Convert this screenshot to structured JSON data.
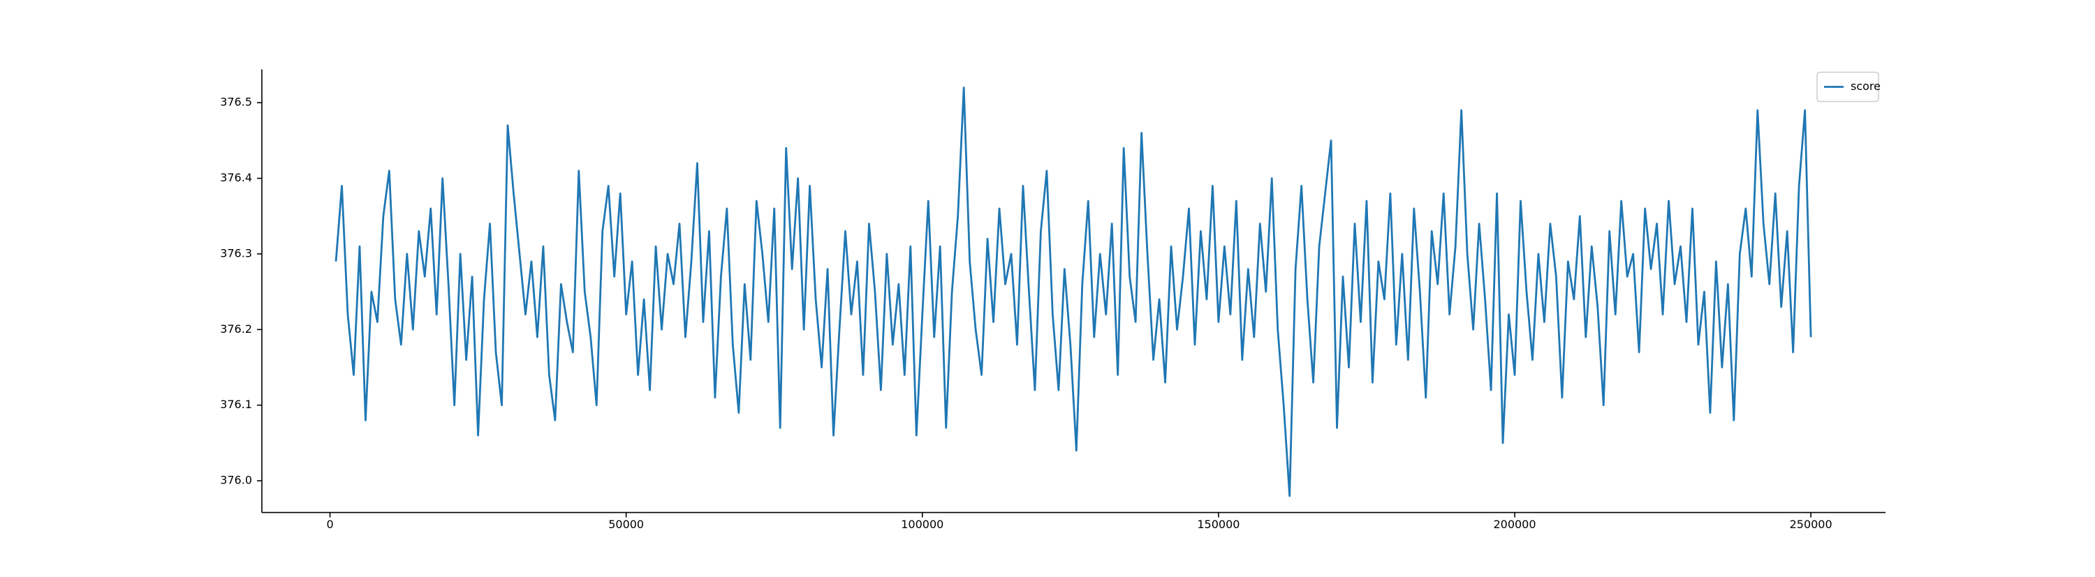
{
  "chart_data": {
    "type": "line",
    "x": [
      1000,
      2000,
      3000,
      4000,
      5000,
      6000,
      7000,
      8000,
      9000,
      10000,
      11000,
      12000,
      13000,
      14000,
      15000,
      16000,
      17000,
      18000,
      19000,
      20000,
      21000,
      22000,
      23000,
      24000,
      25000,
      26000,
      27000,
      28000,
      29000,
      30000,
      31000,
      32000,
      33000,
      34000,
      35000,
      36000,
      37000,
      38000,
      39000,
      40000,
      41000,
      42000,
      43000,
      44000,
      45000,
      46000,
      47000,
      48000,
      49000,
      50000,
      51000,
      52000,
      53000,
      54000,
      55000,
      56000,
      57000,
      58000,
      59000,
      60000,
      61000,
      62000,
      63000,
      64000,
      65000,
      66000,
      67000,
      68000,
      69000,
      70000,
      71000,
      72000,
      73000,
      74000,
      75000,
      76000,
      77000,
      78000,
      79000,
      80000,
      81000,
      82000,
      83000,
      84000,
      85000,
      86000,
      87000,
      88000,
      89000,
      90000,
      91000,
      92000,
      93000,
      94000,
      95000,
      96000,
      97000,
      98000,
      99000,
      100000,
      101000,
      102000,
      103000,
      104000,
      105000,
      106000,
      107000,
      108000,
      109000,
      110000,
      111000,
      112000,
      113000,
      114000,
      115000,
      116000,
      117000,
      118000,
      119000,
      120000,
      121000,
      122000,
      123000,
      124000,
      125000,
      126000,
      127000,
      128000,
      129000,
      130000,
      131000,
      132000,
      133000,
      134000,
      135000,
      136000,
      137000,
      138000,
      139000,
      140000,
      141000,
      142000,
      143000,
      144000,
      145000,
      146000,
      147000,
      148000,
      149000,
      150000,
      151000,
      152000,
      153000,
      154000,
      155000,
      156000,
      157000,
      158000,
      159000,
      160000,
      161000,
      162000,
      163000,
      164000,
      165000,
      166000,
      167000,
      168000,
      169000,
      170000,
      171000,
      172000,
      173000,
      174000,
      175000,
      176000,
      177000,
      178000,
      179000,
      180000,
      181000,
      182000,
      183000,
      184000,
      185000,
      186000,
      187000,
      188000,
      189000,
      190000,
      191000,
      192000,
      193000,
      194000,
      195000,
      196000,
      197000,
      198000,
      199000,
      200000,
      201000,
      202000,
      203000,
      204000,
      205000,
      206000,
      207000,
      208000,
      209000,
      210000,
      211000,
      212000,
      213000,
      214000,
      215000,
      216000,
      217000,
      218000,
      219000,
      220000,
      221000,
      222000,
      223000,
      224000,
      225000,
      226000,
      227000,
      228000,
      229000,
      230000,
      231000,
      232000,
      233000,
      234000,
      235000,
      236000,
      237000,
      238000,
      239000,
      240000,
      241000,
      242000,
      243000,
      244000,
      245000,
      246000,
      247000,
      248000,
      249000,
      250000
    ],
    "series": [
      {
        "name": "score",
        "color": "#1f77b4",
        "values": [
          376.29,
          376.39,
          376.22,
          376.14,
          376.31,
          376.08,
          376.25,
          376.21,
          376.35,
          376.41,
          376.24,
          376.18,
          376.3,
          376.2,
          376.33,
          376.27,
          376.36,
          376.22,
          376.4,
          376.26,
          376.1,
          376.3,
          376.16,
          376.27,
          376.06,
          376.24,
          376.34,
          376.17,
          376.1,
          376.47,
          376.38,
          376.3,
          376.22,
          376.29,
          376.19,
          376.31,
          376.14,
          376.08,
          376.26,
          376.21,
          376.17,
          376.41,
          376.25,
          376.19,
          376.1,
          376.33,
          376.39,
          376.27,
          376.38,
          376.22,
          376.29,
          376.14,
          376.24,
          376.12,
          376.31,
          376.2,
          376.3,
          376.26,
          376.34,
          376.19,
          376.29,
          376.42,
          376.21,
          376.33,
          376.11,
          376.27,
          376.36,
          376.18,
          376.09,
          376.26,
          376.16,
          376.37,
          376.3,
          376.21,
          376.36,
          376.07,
          376.44,
          376.28,
          376.4,
          376.2,
          376.39,
          376.24,
          376.15,
          376.28,
          376.06,
          376.2,
          376.33,
          376.22,
          376.29,
          376.14,
          376.34,
          376.25,
          376.12,
          376.3,
          376.18,
          376.26,
          376.14,
          376.31,
          376.06,
          376.22,
          376.37,
          376.19,
          376.31,
          376.07,
          376.25,
          376.35,
          376.52,
          376.29,
          376.2,
          376.14,
          376.32,
          376.21,
          376.36,
          376.26,
          376.3,
          376.18,
          376.39,
          376.25,
          376.12,
          376.33,
          376.41,
          376.22,
          376.12,
          376.28,
          376.18,
          376.04,
          376.26,
          376.37,
          376.19,
          376.3,
          376.22,
          376.34,
          376.14,
          376.44,
          376.27,
          376.21,
          376.46,
          376.3,
          376.16,
          376.24,
          376.13,
          376.31,
          376.2,
          376.27,
          376.36,
          376.18,
          376.33,
          376.24,
          376.39,
          376.21,
          376.31,
          376.22,
          376.37,
          376.16,
          376.28,
          376.19,
          376.34,
          376.25,
          376.4,
          376.2,
          376.1,
          375.98,
          376.28,
          376.39,
          376.24,
          376.13,
          376.31,
          376.38,
          376.45,
          376.07,
          376.27,
          376.15,
          376.34,
          376.21,
          376.37,
          376.13,
          376.29,
          376.24,
          376.38,
          376.18,
          376.3,
          376.16,
          376.36,
          376.25,
          376.11,
          376.33,
          376.26,
          376.38,
          376.22,
          376.31,
          376.49,
          376.3,
          376.2,
          376.34,
          376.24,
          376.12,
          376.38,
          376.05,
          376.22,
          376.14,
          376.37,
          376.25,
          376.16,
          376.3,
          376.21,
          376.34,
          376.27,
          376.11,
          376.29,
          376.24,
          376.35,
          376.19,
          376.31,
          376.23,
          376.1,
          376.33,
          376.22,
          376.37,
          376.27,
          376.3,
          376.17,
          376.36,
          376.28,
          376.34,
          376.22,
          376.37,
          376.26,
          376.31,
          376.21,
          376.36,
          376.18,
          376.25,
          376.09,
          376.29,
          376.15,
          376.26,
          376.08,
          376.3,
          376.36,
          376.27,
          376.49,
          376.34,
          376.26,
          376.38,
          376.23,
          376.33,
          376.17,
          376.39,
          376.49,
          376.19
        ]
      }
    ],
    "xlim": [
      -11500,
      262600
    ],
    "xticks": [
      0,
      50000,
      100000,
      150000,
      200000,
      250000
    ],
    "ylim": [
      375.958,
      376.544
    ],
    "yticks": [
      {
        "value": 376,
        "label": "376.0"
      },
      376.1,
      376.2,
      376.3,
      376.4,
      376.5
    ],
    "legend": "upper right",
    "grid": false
  }
}
